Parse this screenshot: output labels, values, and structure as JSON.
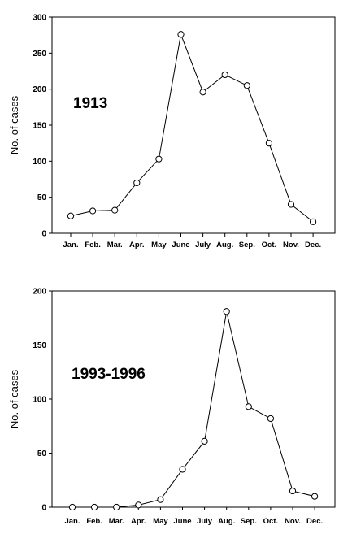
{
  "chart_data": [
    {
      "type": "line",
      "annotation": "1913",
      "ylabel": "No. of cases",
      "xlabel": "",
      "categories": [
        "Jan.",
        "Feb.",
        "Mar.",
        "Apr.",
        "May",
        "June",
        "July",
        "Aug.",
        "Sep.",
        "Oct.",
        "Nov.",
        "Dec."
      ],
      "values": [
        24,
        31,
        32,
        70,
        103,
        276,
        196,
        220,
        205,
        125,
        40,
        16
      ],
      "ylim": [
        0,
        300
      ],
      "yticks": [
        0,
        50,
        100,
        150,
        200,
        250,
        300
      ],
      "grid": false,
      "marker": "open-circle",
      "line_color": "#000000"
    },
    {
      "type": "line",
      "annotation": "1993-1996",
      "ylabel": "No. of cases",
      "xlabel": "",
      "categories": [
        "Jan.",
        "Feb.",
        "Mar.",
        "Apr.",
        "May",
        "June",
        "July",
        "Aug.",
        "Sep.",
        "Oct.",
        "Nov.",
        "Dec."
      ],
      "values": [
        0,
        0,
        0,
        2,
        7,
        35,
        61,
        181,
        93,
        82,
        15,
        10
      ],
      "ylim": [
        0,
        200
      ],
      "yticks": [
        0,
        50,
        100,
        150,
        200
      ],
      "grid": false,
      "marker": "open-circle",
      "line_color": "#000000"
    }
  ]
}
